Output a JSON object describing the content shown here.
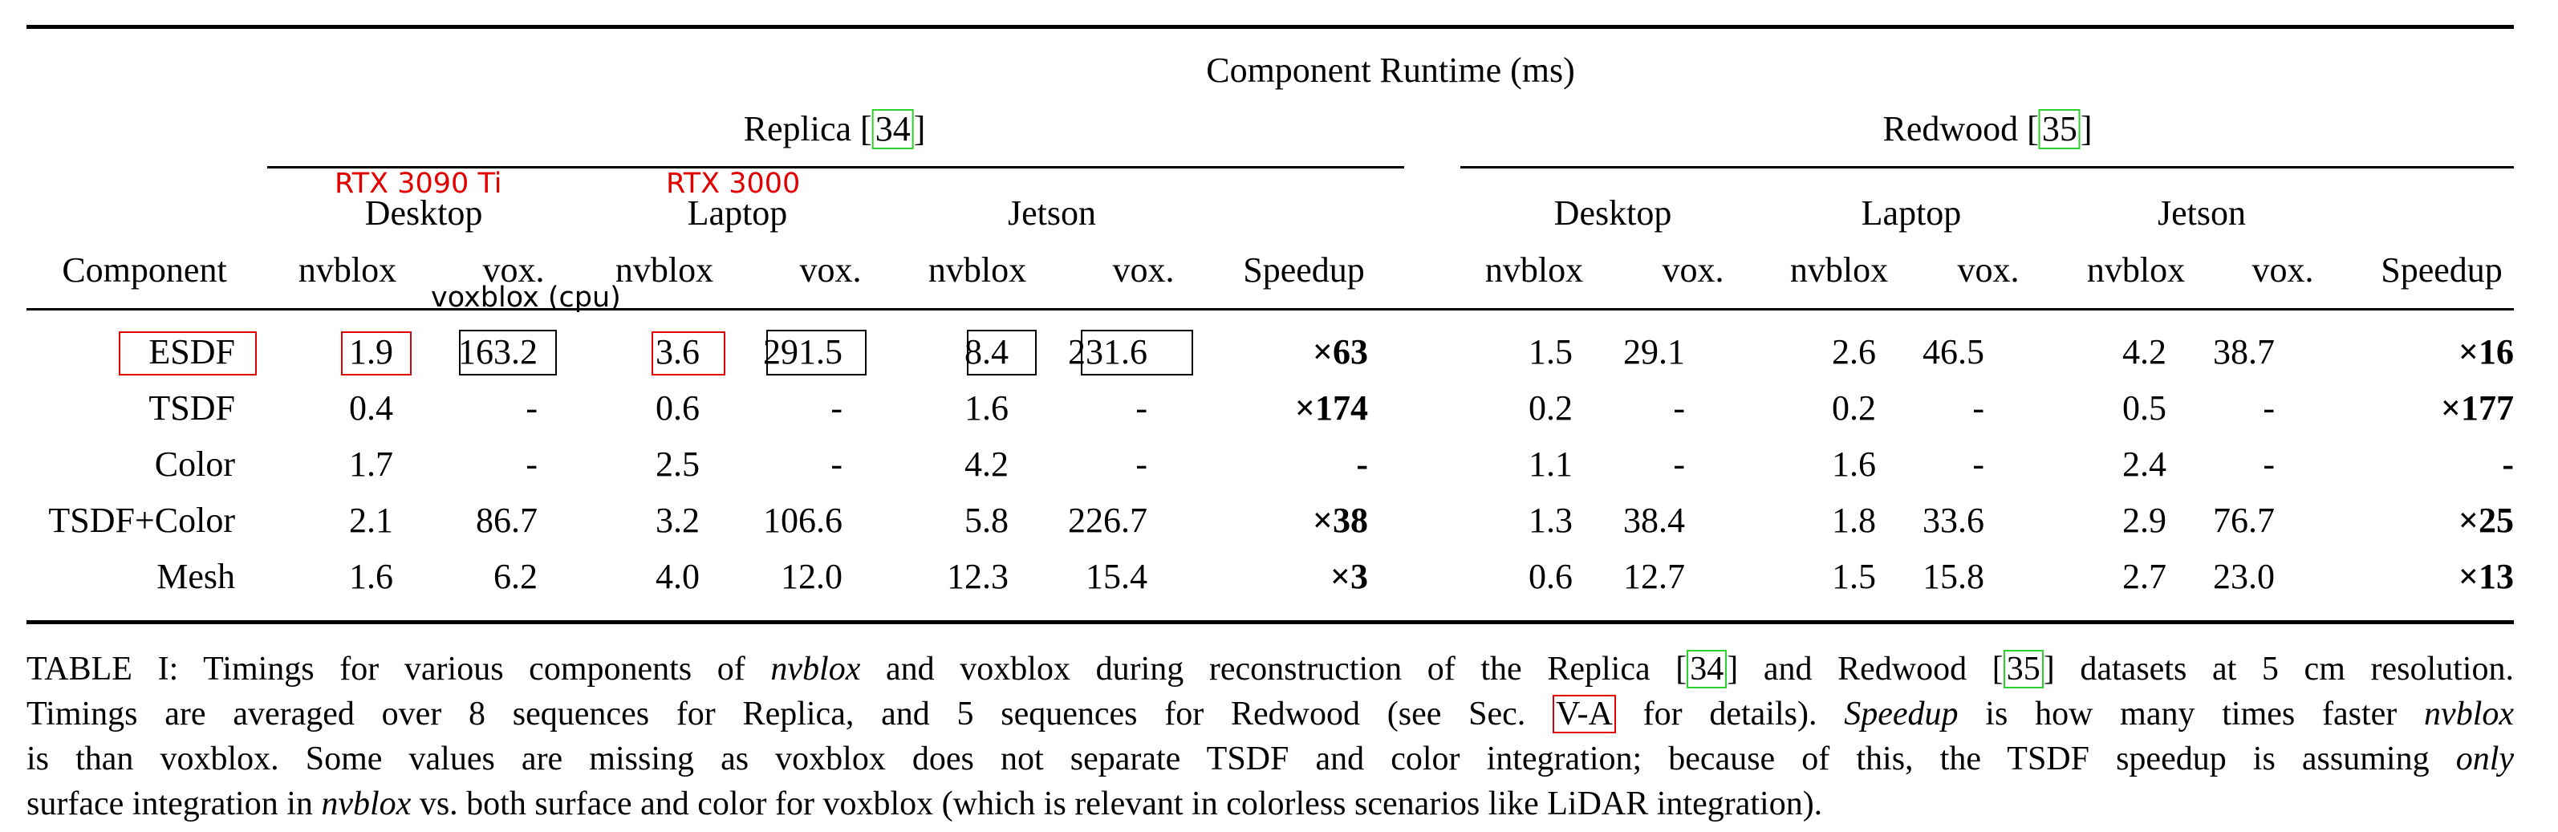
{
  "table": {
    "super_header": "Component Runtime (ms)",
    "group_replica": {
      "name": "Replica",
      "ref": "34"
    },
    "group_redwood": {
      "name": "Redwood",
      "ref": "35"
    },
    "devices": [
      "Desktop",
      "Laptop",
      "Jetson"
    ],
    "col_component": "Component",
    "col_nvblox": "nvblox",
    "col_vox": "vox.",
    "col_speedup": "Speedup",
    "rows": [
      {
        "name": "ESDF",
        "replica": [
          "1.9",
          "163.2",
          "3.6",
          "291.5",
          "8.4",
          "231.6"
        ],
        "replica_speedup": "×63",
        "redwood": [
          "1.5",
          "29.1",
          "2.6",
          "46.5",
          "4.2",
          "38.7"
        ],
        "redwood_speedup": "×16"
      },
      {
        "name": "TSDF",
        "replica": [
          "0.4",
          "-",
          "0.6",
          "-",
          "1.6",
          "-"
        ],
        "replica_speedup": "×174",
        "redwood": [
          "0.2",
          "-",
          "0.2",
          "-",
          "0.5",
          "-"
        ],
        "redwood_speedup": "×177"
      },
      {
        "name": "Color",
        "replica": [
          "1.7",
          "-",
          "2.5",
          "-",
          "4.2",
          "-"
        ],
        "replica_speedup": "-",
        "redwood": [
          "1.1",
          "-",
          "1.6",
          "-",
          "2.4",
          "-"
        ],
        "redwood_speedup": "-"
      },
      {
        "name": "TSDF+Color",
        "replica": [
          "2.1",
          "86.7",
          "3.2",
          "106.6",
          "5.8",
          "226.7"
        ],
        "replica_speedup": "×38",
        "redwood": [
          "1.3",
          "38.4",
          "1.8",
          "33.6",
          "2.9",
          "76.7"
        ],
        "redwood_speedup": "×25"
      },
      {
        "name": "Mesh",
        "replica": [
          "1.6",
          "6.2",
          "4.0",
          "12.0",
          "12.3",
          "15.4"
        ],
        "replica_speedup": "×3",
        "redwood": [
          "0.6",
          "12.7",
          "1.5",
          "15.8",
          "2.7",
          "23.0"
        ],
        "redwood_speedup": "×13"
      }
    ]
  },
  "annotations": {
    "desktop_gpu": "RTX 3090 Ti",
    "laptop_gpu": "RTX 3000",
    "voxblox_note": "voxblox (cpu)",
    "red": "#e00000",
    "green": "#2ad22a"
  },
  "caption": {
    "l1_a": "TABLE I: Timings for various components of ",
    "l1_b": "nvblox",
    "l1_c": " and voxblox during reconstruction of the Replica [",
    "l1_d": "34",
    "l1_e": "] and Redwood [",
    "l1_f": "35",
    "l1_g": "] datasets at 5 cm resolution.",
    "l2_a": "Timings are averaged over 8 sequences for Replica, and 5 sequences for Redwood (see Sec. ",
    "l2_b": "V-A",
    "l2_c": " for details). ",
    "l2_d": "Speedup",
    "l2_e": " is how many times faster ",
    "l2_f": "nvblox",
    "l3_a": "is than voxblox. Some values are missing as voxblox does not separate TSDF and color integration; because of this, the TSDF speedup is assuming ",
    "l3_b": "only",
    "l4_a": "surface integration in ",
    "l4_b": "nvblox",
    "l4_c": " vs. both surface and color for voxblox (which is relevant in colorless scenarios like LiDAR integration)."
  }
}
